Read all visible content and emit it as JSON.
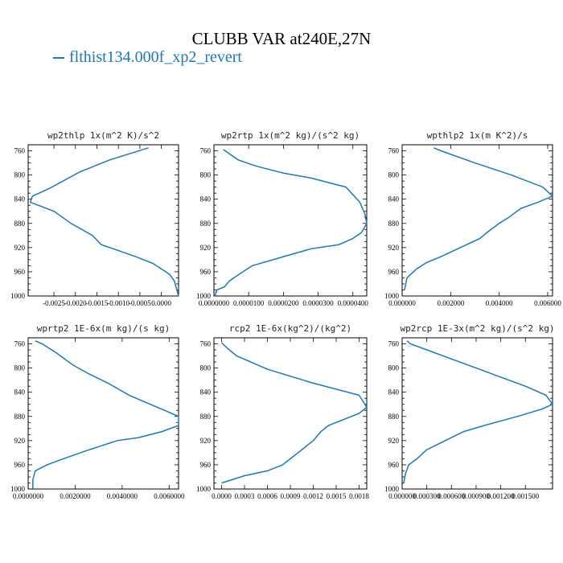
{
  "title": "CLUBB VAR at240E,27N",
  "legend": {
    "label": "flthist134.000f_xp2_revert",
    "color": "#1f77b4"
  },
  "chart_data": [
    {
      "type": "line",
      "title": "wp2thlp   1x(m^2 K)/s^2",
      "ylim": [
        1000,
        750
      ],
      "yticks": [
        "760",
        "800",
        "840",
        "880",
        "920",
        "960",
        "1000"
      ],
      "xlim": [
        -0.0031,
        0.0004
      ],
      "xticks": [
        -0.0025,
        -0.002,
        -0.0015,
        -0.001,
        -0.0005,
        0.0
      ],
      "xtick_labels": [
        "-0.0025",
        "-0.0020",
        "-0.0015",
        "-0.0010",
        "-0.0005",
        "0.0000"
      ],
      "series": [
        {
          "x": [
            -0.0003,
            -0.0012,
            -0.0019,
            -0.0026,
            -0.003,
            -0.00305,
            -0.0025,
            -0.0021,
            -0.0016,
            -0.0014,
            -0.001,
            -0.0006,
            -0.0002,
            0.0001,
            0.0002,
            0.0003,
            0.0004
          ],
          "y": [
            755,
            775,
            795,
            822,
            835,
            845,
            860,
            880,
            900,
            915,
            925,
            935,
            946,
            960,
            965,
            975,
            1000
          ]
        }
      ]
    },
    {
      "type": "line",
      "title": "wp2rtp   1x(m^2 kg)/(s^2 kg)",
      "ylim": [
        1000,
        750
      ],
      "yticks": [
        "760",
        "800",
        "840",
        "880",
        "920",
        "960",
        "1000"
      ],
      "xlim": [
        0,
        4.4e-05
      ],
      "xticks": [
        0,
        1e-05,
        2e-05,
        3e-05,
        4e-05
      ],
      "xtick_labels": [
        "0.0000000",
        "0.0000100",
        "0.0000200",
        "0.0000300",
        "0.0000400"
      ],
      "series": [
        {
          "x": [
            2.7e-06,
            7e-06,
            1.2e-05,
            2e-05,
            2.8e-05,
            3.8e-05,
            4.2e-05,
            4.35e-05,
            4.4e-05,
            4.25e-05,
            4e-05,
            3.6e-05,
            2.8e-05,
            2e-05,
            1.1e-05,
            7e-06,
            4.5e-06,
            3e-06,
            8e-07,
            3e-07
          ],
          "y": [
            758,
            775,
            785,
            797,
            805,
            820,
            845,
            865,
            880,
            895,
            905,
            915,
            922,
            935,
            950,
            965,
            975,
            985,
            990,
            1000
          ]
        }
      ]
    },
    {
      "type": "line",
      "title": "wpthlp2   1x(m K^2)/s",
      "ylim": [
        1000,
        750
      ],
      "yticks": [
        "760",
        "800",
        "840",
        "880",
        "920",
        "960",
        "1000"
      ],
      "xlim": [
        0,
        0.0062
      ],
      "xticks": [
        0,
        0.002,
        0.004,
        0.006
      ],
      "xtick_labels": [
        "0.000000",
        "0.002000",
        "0.004000",
        "0.006000"
      ],
      "series": [
        {
          "x": [
            0.0013,
            0.0016,
            0.003,
            0.0045,
            0.0058,
            0.0062,
            0.0056,
            0.0049,
            0.0044,
            0.004,
            0.0035,
            0.0032,
            0.0024,
            0.0016,
            0.001,
            0.0006,
            0.0002,
            0.0001
          ],
          "y": [
            755,
            760,
            780,
            800,
            820,
            835,
            845,
            855,
            870,
            880,
            895,
            905,
            920,
            935,
            945,
            955,
            970,
            990
          ]
        }
      ]
    },
    {
      "type": "line",
      "title": "wprtp2   1E-6x(m kg)/(s kg)",
      "ylim": [
        1000,
        750
      ],
      "yticks": [
        "760",
        "800",
        "840",
        "880",
        "920",
        "960",
        "1000"
      ],
      "xlim": [
        0,
        0.0064
      ],
      "xticks": [
        0,
        0.002,
        0.004,
        0.006
      ],
      "xtick_labels": [
        "0.0000000",
        "0.0020000",
        "0.0040000",
        "0.0060000"
      ],
      "series": [
        {
          "x": [
            0.0003,
            0.0006,
            0.0012,
            0.0019,
            0.0026,
            0.0034,
            0.0043,
            0.0052,
            0.0058,
            0.0064,
            0.0064,
            0.0057,
            0.0047,
            0.0038,
            0.0026,
            0.0015,
            0.0008,
            0.0003,
            0.0002,
            0.0002
          ],
          "y": [
            755,
            760,
            775,
            795,
            810,
            825,
            845,
            860,
            870,
            880,
            895,
            905,
            915,
            920,
            935,
            950,
            960,
            970,
            985,
            1000
          ]
        }
      ]
    },
    {
      "type": "line",
      "title": "rcp2   1E-6x(kg^2)/(kg^2)",
      "ylim": [
        1000,
        750
      ],
      "yticks": [
        "760",
        "800",
        "840",
        "880",
        "920",
        "960",
        "1000"
      ],
      "xlim": [
        -0.0001,
        0.0019
      ],
      "xticks": [
        0,
        0.0003,
        0.0006,
        0.0009,
        0.0012,
        0.0015,
        0.0018
      ],
      "xtick_labels": [
        "0.0000",
        "0.0003",
        "0.0006",
        "0.0009",
        "0.0012",
        "0.0015",
        "0.0018"
      ],
      "series": [
        {
          "x": [
            0.0,
            0.0001,
            0.0002,
            0.0006,
            0.0012,
            0.0018,
            0.0019,
            0.0018,
            0.0014,
            0.0013,
            0.0012,
            0.001,
            0.0009,
            0.0008,
            0.0006,
            0.0003,
            0.0
          ],
          "y": [
            758,
            770,
            780,
            802,
            825,
            845,
            865,
            875,
            895,
            905,
            920,
            940,
            950,
            960,
            970,
            978,
            990
          ]
        }
      ]
    },
    {
      "type": "line",
      "title": "wp2rcp   1E-3x(m^2 kg)/(s^2 kg)",
      "ylim": [
        1000,
        750
      ],
      "yticks": [
        "760",
        "800",
        "840",
        "880",
        "920",
        "960",
        "1000"
      ],
      "xlim": [
        0,
        0.00183
      ],
      "xticks": [
        0,
        0.0003,
        0.0006,
        0.0009,
        0.0012,
        0.0015
      ],
      "xtick_labels": [
        "0.000000",
        "0.000300",
        "0.000600",
        "0.000900",
        "0.001200",
        "0.001500"
      ],
      "series": [
        {
          "x": [
            6e-05,
            0.0001,
            0.0003,
            0.0006,
            0.0009,
            0.0012,
            0.0015,
            0.00175,
            0.00183,
            0.0017,
            0.0014,
            0.001,
            0.00075,
            0.0006,
            0.00045,
            0.0003,
            0.00018,
            8e-05,
            4e-05,
            2e-05
          ],
          "y": [
            755,
            760,
            770,
            785,
            800,
            815,
            830,
            845,
            860,
            868,
            880,
            895,
            905,
            915,
            925,
            935,
            950,
            960,
            975,
            990
          ]
        }
      ]
    }
  ]
}
